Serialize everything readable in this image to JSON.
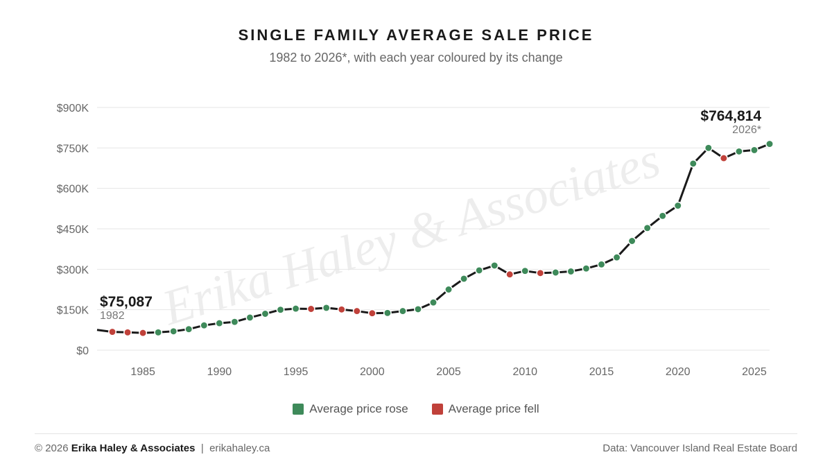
{
  "title": "SINGLE FAMILY AVERAGE SALE PRICE",
  "subtitle": "1982 to 2026*, with each year coloured by its change",
  "watermark": "Erika Haley & Associates",
  "colors": {
    "rose": "#3e8a5a",
    "fell": "#c0413a",
    "line": "#1a1a1a",
    "grid": "#e6e6e6"
  },
  "legend": {
    "rose_label": "Average price rose",
    "fell_label": "Average price fell"
  },
  "footer": {
    "copyright": "© 2026",
    "company": "Erika Haley & Associates",
    "separator": "|",
    "website": "erikahaley.ca",
    "source": "Data: Vancouver Island Real Estate Board"
  },
  "chart_data": {
    "type": "line",
    "ylim": [
      0,
      900000
    ],
    "xlim": [
      1982,
      2026
    ],
    "y_ticks": [
      {
        "value": 0,
        "label": "$0"
      },
      {
        "value": 150000,
        "label": "$150K"
      },
      {
        "value": 300000,
        "label": "$300K"
      },
      {
        "value": 450000,
        "label": "$450K"
      },
      {
        "value": 600000,
        "label": "$600K"
      },
      {
        "value": 750000,
        "label": "$750K"
      },
      {
        "value": 900000,
        "label": "$900K"
      }
    ],
    "x_ticks": [
      {
        "value": 1985,
        "label": "1985"
      },
      {
        "value": 1990,
        "label": "1990"
      },
      {
        "value": 1995,
        "label": "1995"
      },
      {
        "value": 2000,
        "label": "2000"
      },
      {
        "value": 2005,
        "label": "2005"
      },
      {
        "value": 2010,
        "label": "2010"
      },
      {
        "value": 2015,
        "label": "2015"
      },
      {
        "value": 2020,
        "label": "2020"
      },
      {
        "value": 2025,
        "label": "2025"
      }
    ],
    "grid": true,
    "legend_position": "bottom-center",
    "points": [
      {
        "year": 1982,
        "value": 75087
      },
      {
        "year": 1983,
        "value": 68000
      },
      {
        "year": 1984,
        "value": 66000
      },
      {
        "year": 1985,
        "value": 64000
      },
      {
        "year": 1986,
        "value": 66000
      },
      {
        "year": 1987,
        "value": 70000
      },
      {
        "year": 1988,
        "value": 78000
      },
      {
        "year": 1989,
        "value": 92000
      },
      {
        "year": 1990,
        "value": 100000
      },
      {
        "year": 1991,
        "value": 105000
      },
      {
        "year": 1992,
        "value": 121000
      },
      {
        "year": 1993,
        "value": 135000
      },
      {
        "year": 1994,
        "value": 150000
      },
      {
        "year": 1995,
        "value": 154000
      },
      {
        "year": 1996,
        "value": 153000
      },
      {
        "year": 1997,
        "value": 157000
      },
      {
        "year": 1998,
        "value": 151000
      },
      {
        "year": 1999,
        "value": 145000
      },
      {
        "year": 2000,
        "value": 137000
      },
      {
        "year": 2001,
        "value": 138000
      },
      {
        "year": 2002,
        "value": 145000
      },
      {
        "year": 2003,
        "value": 152000
      },
      {
        "year": 2004,
        "value": 177000
      },
      {
        "year": 2005,
        "value": 225000
      },
      {
        "year": 2006,
        "value": 265000
      },
      {
        "year": 2007,
        "value": 296000
      },
      {
        "year": 2008,
        "value": 314000
      },
      {
        "year": 2009,
        "value": 281000
      },
      {
        "year": 2010,
        "value": 294000
      },
      {
        "year": 2011,
        "value": 286000
      },
      {
        "year": 2012,
        "value": 288000
      },
      {
        "year": 2013,
        "value": 292000
      },
      {
        "year": 2014,
        "value": 303000
      },
      {
        "year": 2015,
        "value": 318000
      },
      {
        "year": 2016,
        "value": 344000
      },
      {
        "year": 2017,
        "value": 405000
      },
      {
        "year": 2018,
        "value": 453000
      },
      {
        "year": 2019,
        "value": 498000
      },
      {
        "year": 2020,
        "value": 536000
      },
      {
        "year": 2021,
        "value": 692000
      },
      {
        "year": 2022,
        "value": 750000
      },
      {
        "year": 2023,
        "value": 712000
      },
      {
        "year": 2024,
        "value": 737000
      },
      {
        "year": 2025,
        "value": 742000
      },
      {
        "year": 2026,
        "value": 764814
      }
    ],
    "annotations": {
      "start": {
        "value_label": "$75,087",
        "year_label": "1982"
      },
      "end": {
        "value_label": "$764,814",
        "year_label": "2026*"
      }
    }
  }
}
